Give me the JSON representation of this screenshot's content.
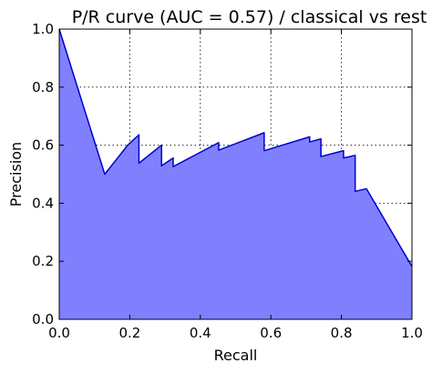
{
  "chart_data": {
    "type": "area",
    "title": "P/R curve (AUC = 0.57) / classical vs rest",
    "xlabel": "Recall",
    "ylabel": "Precision",
    "xlim": [
      0.0,
      1.0
    ],
    "ylim": [
      0.0,
      1.0
    ],
    "grid": true,
    "x_ticks": [
      0.0,
      0.2,
      0.4,
      0.6,
      0.8,
      1.0
    ],
    "y_ticks": [
      0.0,
      0.2,
      0.4,
      0.6,
      0.8,
      1.0
    ],
    "x_tick_labels": [
      "0.0",
      "0.2",
      "0.4",
      "0.6",
      "0.8",
      "1.0"
    ],
    "y_tick_labels": [
      "0.0",
      "0.2",
      "0.4",
      "0.6",
      "0.8",
      "1.0"
    ],
    "series": [
      {
        "x": [
          0.0,
          0.129,
          0.194,
          0.226,
          0.226,
          0.29,
          0.29,
          0.323,
          0.323,
          0.452,
          0.452,
          0.581,
          0.581,
          0.71,
          0.71,
          0.742,
          0.742,
          0.806,
          0.806,
          0.839,
          0.839,
          0.871,
          1.0
        ],
        "y": [
          1.0,
          0.5,
          0.6,
          0.636,
          0.538,
          0.6,
          0.529,
          0.556,
          0.526,
          0.609,
          0.583,
          0.643,
          0.581,
          0.629,
          0.611,
          0.622,
          0.561,
          0.581,
          0.556,
          0.565,
          0.441,
          0.45,
          0.182
        ]
      }
    ],
    "line_color": "#0000cc",
    "fill_color": "#8080ff"
  }
}
